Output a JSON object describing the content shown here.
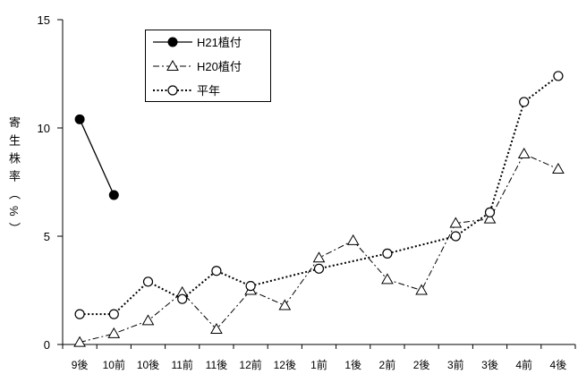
{
  "chart_data": {
    "type": "line",
    "categories": [
      "9後",
      "10前",
      "10後",
      "11前",
      "11後",
      "12前",
      "12後",
      "1前",
      "1後",
      "2前",
      "2後",
      "3前",
      "3後",
      "4前",
      "4後"
    ],
    "ylabel": "寄生株率（%）",
    "ylim": [
      0,
      15
    ],
    "yticks": [
      0,
      5,
      10,
      15
    ],
    "grid": false,
    "legend": "top-left",
    "series": [
      {
        "name": "H21植付",
        "values": [
          10.4,
          6.9,
          null,
          null,
          null,
          null,
          null,
          null,
          null,
          null,
          null,
          null,
          null,
          null,
          null
        ],
        "color": "#000000",
        "line_style": "solid",
        "marker": "filled-circle"
      },
      {
        "name": "H20植付",
        "values": [
          0.1,
          0.5,
          1.1,
          2.4,
          0.7,
          2.5,
          1.8,
          4.0,
          4.8,
          3.0,
          2.5,
          5.6,
          5.8,
          8.8,
          8.1
        ],
        "color": "#000000",
        "line_style": "dash-dot",
        "marker": "open-triangle"
      },
      {
        "name": "平年",
        "values": [
          1.4,
          1.4,
          2.9,
          2.1,
          3.4,
          2.7,
          null,
          3.5,
          null,
          4.2,
          null,
          5.0,
          6.1,
          11.2,
          12.4
        ],
        "color": "#000000",
        "line_style": "dotted",
        "marker": "open-circle"
      }
    ]
  }
}
